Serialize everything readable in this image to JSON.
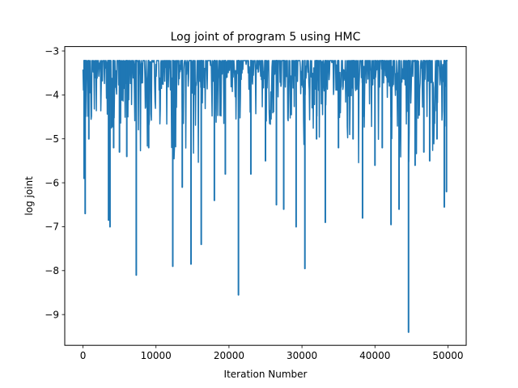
{
  "chart_data": {
    "type": "line",
    "title": "Log joint of program 5 using HMC",
    "xlabel": "Iteration Number",
    "ylabel": "log joint",
    "xlim": [
      -2500,
      52500
    ],
    "ylim": [
      -9.7,
      -2.9
    ],
    "x_ticks": [
      0,
      10000,
      20000,
      30000,
      40000,
      50000
    ],
    "x_tick_labels": [
      "0",
      "10000",
      "20000",
      "30000",
      "40000",
      "50000"
    ],
    "y_ticks": [
      -9,
      -8,
      -7,
      -6,
      -5,
      -4,
      -3
    ],
    "y_tick_labels": [
      "−9",
      "−8",
      "−7",
      "−6",
      "−5",
      "−4",
      "−3"
    ],
    "grid": false,
    "legend": "none",
    "line_color": "#1f77b4",
    "series": [
      {
        "x_start": 0,
        "x_end": 50000,
        "baseline": -3.22,
        "typical_low": -3.9,
        "dips": [
          {
            "x": 150,
            "y": -5.9
          },
          {
            "x": 300,
            "y": -6.7
          },
          {
            "x": 800,
            "y": -5.0
          },
          {
            "x": 3500,
            "y": -6.85
          },
          {
            "x": 3700,
            "y": -7.0
          },
          {
            "x": 4200,
            "y": -5.2
          },
          {
            "x": 5000,
            "y": -5.3
          },
          {
            "x": 6000,
            "y": -5.4
          },
          {
            "x": 7300,
            "y": -8.1
          },
          {
            "x": 9000,
            "y": -5.2
          },
          {
            "x": 12300,
            "y": -7.9
          },
          {
            "x": 13600,
            "y": -6.1
          },
          {
            "x": 14800,
            "y": -7.85
          },
          {
            "x": 16200,
            "y": -7.4
          },
          {
            "x": 18000,
            "y": -6.4
          },
          {
            "x": 19500,
            "y": -5.8
          },
          {
            "x": 21300,
            "y": -8.55
          },
          {
            "x": 23000,
            "y": -5.8
          },
          {
            "x": 25000,
            "y": -5.5
          },
          {
            "x": 26500,
            "y": -6.5
          },
          {
            "x": 27500,
            "y": -6.6
          },
          {
            "x": 29200,
            "y": -7.0
          },
          {
            "x": 30400,
            "y": -7.95
          },
          {
            "x": 32000,
            "y": -5.0
          },
          {
            "x": 33200,
            "y": -6.9
          },
          {
            "x": 35000,
            "y": -5.2
          },
          {
            "x": 37000,
            "y": -5.0
          },
          {
            "x": 38300,
            "y": -6.8
          },
          {
            "x": 40000,
            "y": -5.6
          },
          {
            "x": 41000,
            "y": -5.2
          },
          {
            "x": 42200,
            "y": -6.95
          },
          {
            "x": 43300,
            "y": -6.6
          },
          {
            "x": 44600,
            "y": -9.4
          },
          {
            "x": 45500,
            "y": -5.6
          },
          {
            "x": 46700,
            "y": -5.3
          },
          {
            "x": 47500,
            "y": -5.5
          },
          {
            "x": 48500,
            "y": -5.0
          },
          {
            "x": 49500,
            "y": -6.55
          },
          {
            "x": 49800,
            "y": -6.2
          }
        ]
      }
    ]
  }
}
